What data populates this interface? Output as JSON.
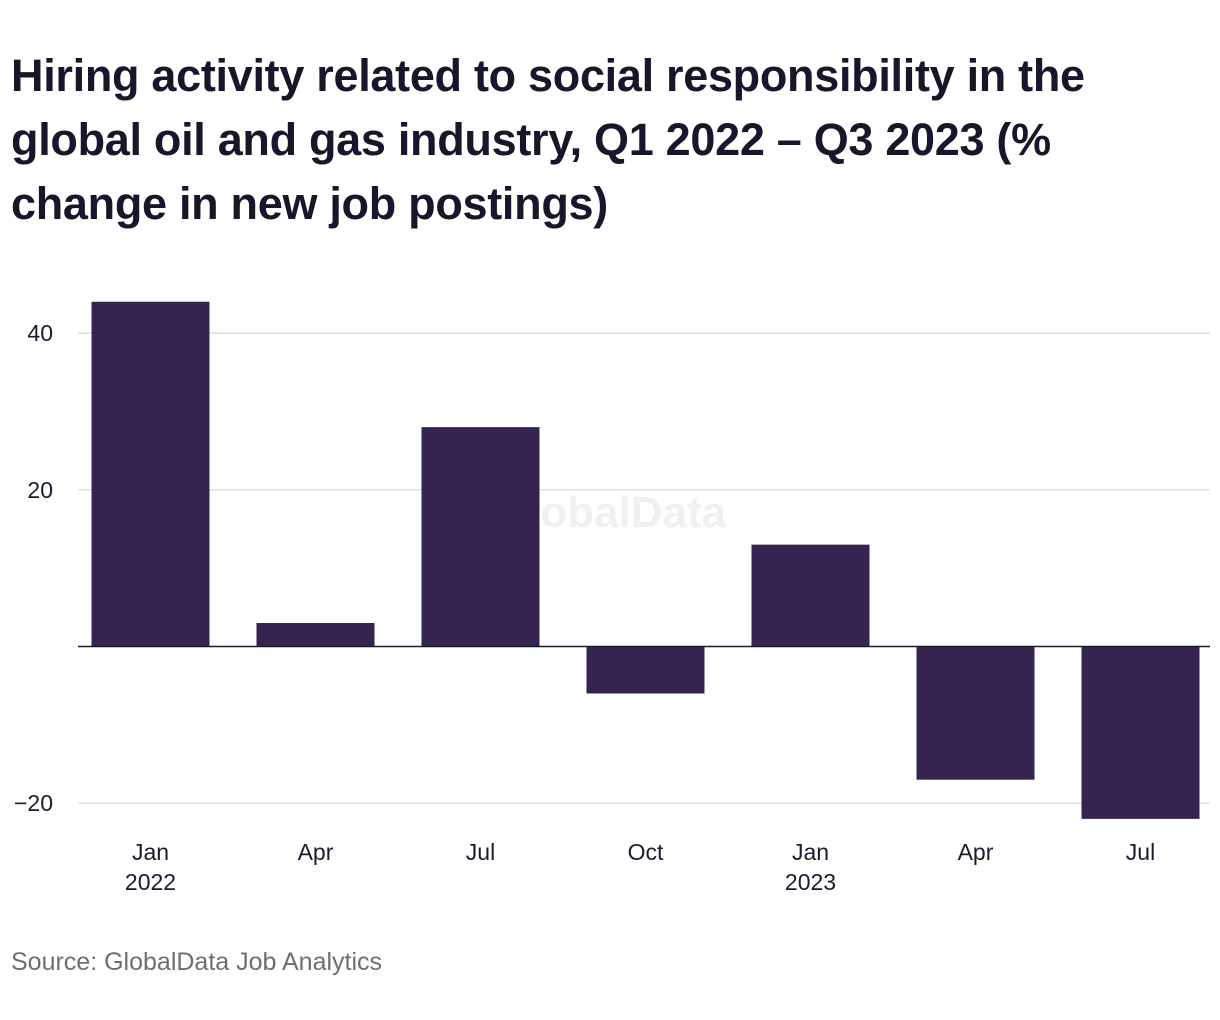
{
  "chart_data": {
    "type": "bar",
    "title": "Hiring activity related to social responsibility in the global oil and gas industry, Q1 2022 – Q3 2023 (% change in new job postings)",
    "categories": [
      "Jan 2022",
      "Apr 2022",
      "Jul 2022",
      "Oct 2022",
      "Jan 2023",
      "Apr 2023",
      "Jul 2023"
    ],
    "x_tick_labels": [
      {
        "month": "Jan",
        "year": "2022"
      },
      {
        "month": "Apr",
        "year": ""
      },
      {
        "month": "Jul",
        "year": ""
      },
      {
        "month": "Oct",
        "year": ""
      },
      {
        "month": "Jan",
        "year": "2023"
      },
      {
        "month": "Apr",
        "year": ""
      },
      {
        "month": "Jul",
        "year": ""
      }
    ],
    "values": [
      44,
      3,
      28,
      -6,
      13,
      -17,
      -22
    ],
    "y_ticks": [
      {
        "value": 40,
        "label": "40"
      },
      {
        "value": 20,
        "label": "20"
      },
      {
        "value": -20,
        "label": "−20"
      }
    ],
    "ylim": [
      -23,
      48
    ],
    "xlabel": "",
    "ylabel": "",
    "grid": true,
    "bar_color": "#352451",
    "watermark": "GlobalData",
    "source": "Source: GlobalData Job Analytics"
  }
}
